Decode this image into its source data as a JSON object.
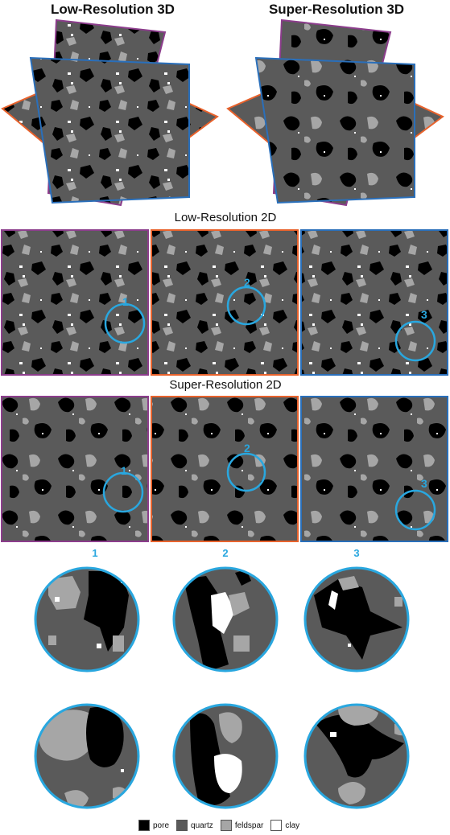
{
  "titles": {
    "low3d": "Low-Resolution 3D",
    "super3d": "Super-Resolution 3D",
    "low2d": "Low-Resolution 2D",
    "super2d": "Super-Resolution 2D"
  },
  "regions": [
    "1",
    "2",
    "3"
  ],
  "legend": [
    {
      "label": "pore",
      "color": "#000000"
    },
    {
      "label": "quartz",
      "color": "#5a5a5a"
    },
    {
      "label": "feldspar",
      "color": "#a6a6a6"
    },
    {
      "label": "clay",
      "color": "#ffffff"
    }
  ],
  "colors": {
    "purple": "#8c3d8c",
    "orange": "#e8622c",
    "blue": "#2a6fba",
    "highlight": "#29a7df"
  }
}
